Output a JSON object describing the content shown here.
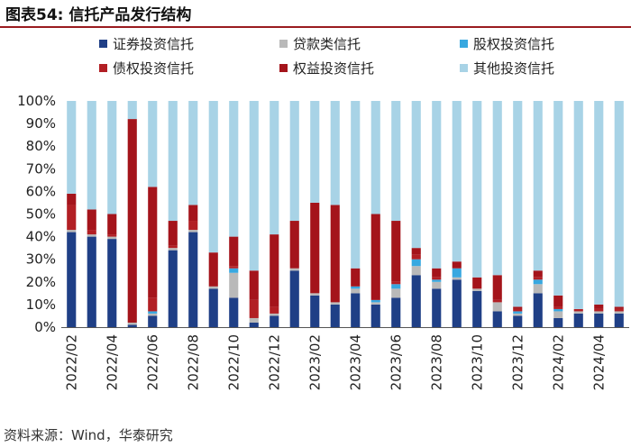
{
  "figure_label": "图表54:",
  "figure_title": "信托产品发行结构",
  "source": "资料来源：Wind，华泰研究",
  "colors": {
    "securities": "#1f3f86",
    "loan": "#b9b9b9",
    "equity_stake": "#38a8e0",
    "debt": "#b21f24",
    "rights": "#a4141b",
    "other": "#a8d3e6",
    "rule": "#9a1b1f"
  },
  "chart_data": {
    "type": "bar",
    "stacked": true,
    "ylim": [
      0,
      100
    ],
    "yticks": [
      "0%",
      "10%",
      "20%",
      "30%",
      "40%",
      "50%",
      "60%",
      "70%",
      "80%",
      "90%",
      "100%"
    ],
    "categories": [
      "2022/02",
      "2022/03",
      "2022/04",
      "2022/05",
      "2022/06",
      "2022/07",
      "2022/08",
      "2022/09",
      "2022/10",
      "2022/11",
      "2022/12",
      "2023/01",
      "2023/02",
      "2023/03",
      "2023/04",
      "2023/05",
      "2023/06",
      "2023/07",
      "2023/08",
      "2023/09",
      "2023/10",
      "2023/11",
      "2023/12",
      "2024/01",
      "2024/02",
      "2024/03",
      "2024/04",
      "2024/05"
    ],
    "xtick_labels": [
      "2022/02",
      "2022/04",
      "2022/06",
      "2022/08",
      "2022/10",
      "2022/12",
      "2023/02",
      "2023/04",
      "2023/06",
      "2023/08",
      "2023/10",
      "2023/12",
      "2024/02",
      "2024/04"
    ],
    "series": [
      {
        "key": "securities",
        "name": "证券投资信托",
        "values": [
          42,
          40,
          39,
          1,
          5,
          34,
          42,
          17,
          13,
          2,
          5,
          25,
          14,
          10,
          15,
          10,
          13,
          23,
          17,
          21,
          16,
          7,
          5,
          15,
          4,
          6,
          6,
          6
        ]
      },
      {
        "key": "loan",
        "name": "贷款类信托",
        "values": [
          1,
          1,
          1,
          1,
          1,
          1,
          1,
          1,
          11,
          2,
          1,
          1,
          1,
          1,
          2,
          1,
          4,
          4,
          3,
          1,
          1,
          4,
          1,
          4,
          3,
          1,
          1,
          1
        ]
      },
      {
        "key": "equity_stake",
        "name": "股权投资信托",
        "values": [
          0,
          0,
          0,
          0,
          1,
          0,
          0,
          0,
          2,
          0,
          0,
          0,
          0,
          0,
          1,
          1,
          2,
          3,
          1,
          4,
          0,
          0,
          1,
          2,
          1,
          0,
          0,
          0
        ]
      },
      {
        "key": "debt",
        "name": "债权投资信托",
        "values": [
          11,
          2,
          1,
          0,
          6,
          1,
          4,
          0,
          1,
          8,
          3,
          0,
          0,
          0,
          0,
          0,
          1,
          2,
          1,
          0,
          0,
          1,
          1,
          1,
          1,
          1,
          1,
          1
        ]
      },
      {
        "key": "rights",
        "name": "权益投资信托",
        "values": [
          5,
          9,
          9,
          90,
          49,
          11,
          7,
          15,
          13,
          13,
          32,
          21,
          40,
          43,
          8,
          38,
          27,
          3,
          4,
          3,
          5,
          11,
          1,
          3,
          5,
          0,
          2,
          1
        ]
      },
      {
        "key": "other",
        "name": "其他投资信托",
        "values": [
          41,
          48,
          50,
          8,
          38,
          53,
          46,
          67,
          60,
          75,
          59,
          53,
          45,
          46,
          74,
          50,
          53,
          65,
          74,
          71,
          78,
          77,
          91,
          75,
          86,
          92,
          90,
          91
        ]
      }
    ],
    "legend_order": [
      "securities",
      "loan",
      "equity_stake",
      "debt",
      "rights",
      "other"
    ]
  }
}
